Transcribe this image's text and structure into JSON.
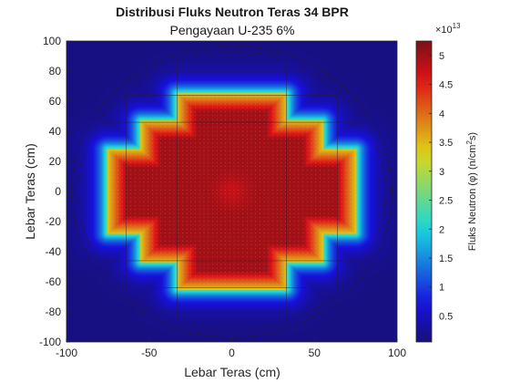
{
  "chart_data": {
    "type": "heatmap",
    "title": "Distribusi Fluks Neutron Teras 34 BPR",
    "subtitle": "Pengayaan U-235 6%",
    "xlabel": "Lebar Teras (cm)",
    "ylabel": "Lebar Teras (cm)",
    "xlim": [
      -100,
      100
    ],
    "ylim": [
      -100,
      100
    ],
    "x_ticks": [
      -100,
      -50,
      0,
      50,
      100
    ],
    "y_ticks": [
      -100,
      -80,
      -60,
      -40,
      -20,
      0,
      20,
      40,
      60,
      80,
      100
    ],
    "colorbar": {
      "label_prefix": "Fluks Neutron (",
      "label_symbol": "φ",
      "label_mid": ") (n/cm",
      "label_sup": "2",
      "label_suffix": "s)",
      "multiplier_base": "×10",
      "multiplier_exp": "13",
      "ticks": [
        0.5,
        1,
        1.5,
        2,
        2.5,
        3,
        3.5,
        4,
        4.5,
        5
      ],
      "range": [
        0.05,
        5.25
      ]
    },
    "colormap": "jet",
    "background_value": 0.1,
    "peak_flux": 5.2,
    "core_steps_cm": [
      {
        "half_width": 33,
        "y_from": -65,
        "y_to": 65
      },
      {
        "half_width": 55,
        "y_from": -47,
        "y_to": 47
      },
      {
        "half_width": 75,
        "y_from": -28,
        "y_to": 28
      }
    ],
    "vessel_radius_cm": 97,
    "grid": false
  }
}
